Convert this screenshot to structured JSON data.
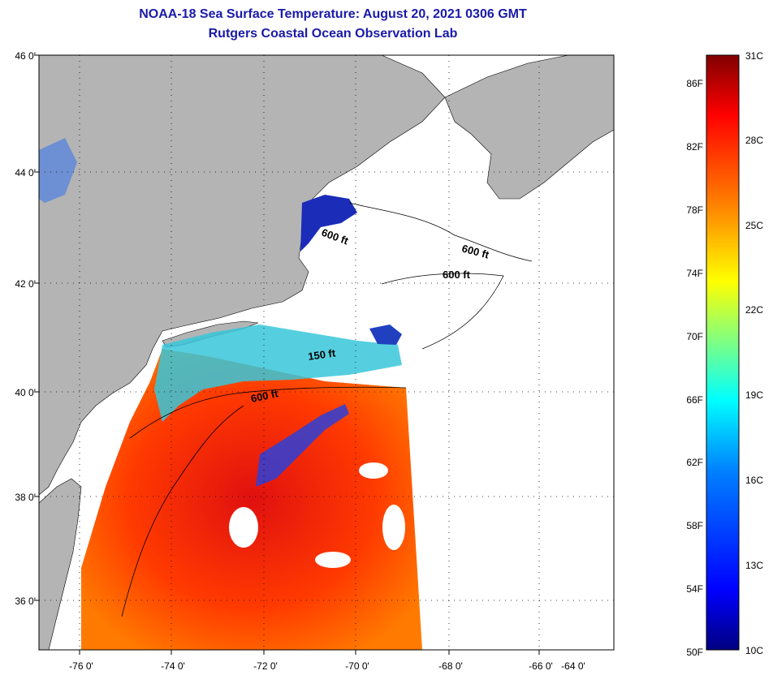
{
  "title": "NOAA-18 Sea Surface Temperature:  August 20, 2021 0306 GMT",
  "subtitle": "Rutgers Coastal Ocean Observation Lab",
  "lat_labels": [
    "46 0'",
    "44 0'",
    "42 0'",
    "40 0'",
    "38 0'",
    "36 0'"
  ],
  "lon_labels": [
    "-76 0'",
    "-74 0'",
    "-72 0'",
    "-70 0'",
    "-68 0'",
    "-66 0'",
    "-64 0'"
  ],
  "depth_labels": [
    "600 ft",
    "600 ft",
    "600 ft",
    "150 ft",
    "600 ft"
  ],
  "colorbar": {
    "fahrenheit": [
      "86F",
      "82F",
      "78F",
      "74F",
      "70F",
      "66F",
      "62F",
      "58F",
      "54F",
      "50F"
    ],
    "celsius": [
      "31C",
      "28C",
      "25C",
      "22C",
      "19C",
      "16C",
      "13C",
      "10C"
    ],
    "colors": [
      "#000080",
      "#0000ff",
      "#0080ff",
      "#00ffff",
      "#80ff80",
      "#ffff00",
      "#ff8000",
      "#ff0000",
      "#800000"
    ]
  },
  "colors": {
    "land": "#b4b4b4",
    "no_data": "#ffffff",
    "title": "#1a1aa8"
  }
}
